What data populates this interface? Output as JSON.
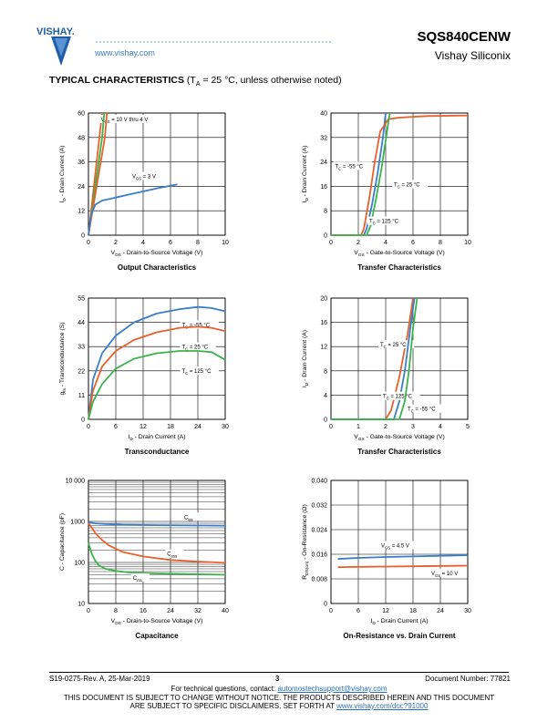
{
  "header": {
    "brand": "VISHAY.",
    "url": "www.vishay.com",
    "part_number": "SQS840CENW",
    "company": "Vishay Siliconix"
  },
  "section": {
    "title": "TYPICAL CHARACTERISTICS",
    "condition": "(T",
    "condition_sub": "A",
    "condition_rest": " = 25 °C, unless otherwise noted)"
  },
  "footer": {
    "doc_rev": "S19-0275-Rev. A, 25-Mar-2019",
    "page": "3",
    "doc_number": "Document Number: 77821",
    "questions_text": "For technical questions, contact: ",
    "questions_link": "automostechsupport@vishay.com",
    "notice_line1": "THIS DOCUMENT IS SUBJECT TO CHANGE WITHOUT NOTICE. THE PRODUCTS DESCRIBED HEREIN AND THIS DOCUMENT",
    "notice_line2": "ARE SUBJECT TO SPECIFIC DISCLAIMERS, SET FORTH AT ",
    "notice_link": "www.vishay.com/doc?91000"
  },
  "colors": {
    "blue": "#3a7dc9",
    "orange": "#e8612c",
    "green": "#3cb34a",
    "grid": "#000000"
  },
  "chart_data": [
    {
      "type": "line",
      "title": "Output Characteristics",
      "xlabel": "V_DS - Drain-to-Source Voltage (V)",
      "ylabel": "I_D - Drain Current (A)",
      "xlim": [
        0,
        10
      ],
      "ylim": [
        0,
        60
      ],
      "xticks": [
        0,
        2,
        4,
        6,
        8,
        10
      ],
      "yticks": [
        0,
        12,
        24,
        36,
        48,
        60
      ],
      "series": [
        {
          "name": "V_GS = 10 V thru 4 V",
          "color": "orange",
          "x": [
            0,
            0.2,
            0.4,
            0.6,
            0.8,
            1.0
          ],
          "y": [
            0,
            12,
            24,
            36,
            48,
            60
          ]
        },
        {
          "name": "",
          "color": "green",
          "x": [
            0,
            0.25,
            0.5,
            0.75,
            1.0,
            1.15
          ],
          "y": [
            0,
            12,
            24,
            36,
            48,
            60
          ]
        },
        {
          "name": "",
          "color": "orange",
          "x": [
            0,
            0.3,
            0.6,
            0.9,
            1.2,
            1.35
          ],
          "y": [
            0,
            12,
            24,
            36,
            48,
            60
          ]
        },
        {
          "name": "V_GS = 3 V",
          "color": "blue",
          "x": [
            0,
            0.2,
            0.5,
            1.0,
            2.0,
            3.0,
            4.0,
            5.0,
            6.5
          ],
          "y": [
            0,
            10,
            15,
            17,
            18.5,
            20,
            21.5,
            23,
            25
          ]
        }
      ]
    },
    {
      "type": "line",
      "title": "Transfer Characteristics",
      "xlabel": "V_GS - Gate-to-Source Voltage (V)",
      "ylabel": "I_D - Drain Current (A)",
      "xlim": [
        0,
        10
      ],
      "ylim": [
        0,
        40
      ],
      "xticks": [
        0,
        2,
        4,
        6,
        8,
        10
      ],
      "yticks": [
        0,
        8,
        16,
        24,
        32,
        40
      ],
      "series": [
        {
          "name": "T_C = -55 °C",
          "color": "blue",
          "x": [
            0,
            2.4,
            2.6,
            3.0,
            3.4,
            3.8,
            4.0
          ],
          "y": [
            0,
            0,
            2,
            10,
            20,
            32,
            40
          ]
        },
        {
          "name": "T_C = 25 °C",
          "color": "orange",
          "x": [
            0,
            2.2,
            2.4,
            2.8,
            3.2,
            3.6,
            4.2,
            5,
            7,
            10
          ],
          "y": [
            0,
            0,
            2,
            12,
            24,
            34,
            38,
            38.5,
            39,
            39.2
          ]
        },
        {
          "name": "T_C = 125 °C",
          "color": "green",
          "x": [
            0,
            2.6,
            2.9,
            3.3,
            3.7,
            4.1,
            4.3
          ],
          "y": [
            0,
            0,
            3,
            12,
            22,
            34,
            40
          ]
        }
      ]
    },
    {
      "type": "line",
      "title": "Transconductance",
      "xlabel": "I_D - Drain Current (A)",
      "ylabel": "g_fs - Transconductance (S)",
      "xlim": [
        0,
        30
      ],
      "ylim": [
        0,
        55
      ],
      "xticks": [
        0,
        6,
        12,
        18,
        24,
        30
      ],
      "yticks": [
        0,
        11,
        22,
        33,
        44,
        55
      ],
      "series": [
        {
          "name": "T_C = -55 °C",
          "color": "blue",
          "x": [
            0,
            1,
            3,
            6,
            10,
            15,
            20,
            24,
            27,
            30
          ],
          "y": [
            0,
            18,
            30,
            38,
            44,
            48,
            50,
            51,
            50.5,
            49
          ]
        },
        {
          "name": "T_C = 25 °C",
          "color": "orange",
          "x": [
            0,
            1,
            3,
            6,
            10,
            15,
            20,
            24,
            27,
            30
          ],
          "y": [
            0,
            13,
            24,
            31,
            36,
            39.5,
            41.5,
            42,
            41.5,
            40
          ]
        },
        {
          "name": "T_C = 125 °C",
          "color": "green",
          "x": [
            0,
            1,
            3,
            6,
            10,
            15,
            20,
            24,
            27,
            30
          ],
          "y": [
            0,
            8,
            16,
            23,
            27.5,
            30,
            31,
            31,
            30.5,
            27
          ]
        }
      ]
    },
    {
      "type": "line",
      "title": "Transfer Characteristics",
      "xlabel": "V_GS - Gate-to-Source Voltage (V)",
      "ylabel": "I_D - Drain Current (A)",
      "xlim": [
        0,
        5
      ],
      "ylim": [
        0,
        20
      ],
      "xticks": [
        0,
        1,
        2,
        3,
        4,
        5
      ],
      "yticks": [
        0,
        4,
        8,
        12,
        16,
        20
      ],
      "series": [
        {
          "name": "T_C = 25 °C",
          "color": "orange",
          "x": [
            0,
            2.0,
            2.2,
            2.5,
            2.8,
            3.0
          ],
          "y": [
            0,
            0,
            1.5,
            7,
            14,
            20
          ]
        },
        {
          "name": "T_C = 125 °C",
          "color": "blue",
          "x": [
            0,
            2.3,
            2.5,
            2.7,
            2.9,
            3.05
          ],
          "y": [
            0,
            0,
            3,
            8,
            15,
            20
          ]
        },
        {
          "name": "T_C = -55 °C",
          "color": "green",
          "x": [
            0,
            2.5,
            2.7,
            2.85,
            3.0,
            3.15
          ],
          "y": [
            0,
            0,
            3,
            8,
            15,
            20
          ]
        }
      ]
    },
    {
      "type": "line",
      "title": "Capacitance",
      "xlabel": "V_DS - Drain-to-Source Voltage (V)",
      "ylabel": "C - Capacitance (pF)",
      "xlim": [
        0,
        40
      ],
      "ylim": [
        10,
        10000
      ],
      "yscale": "log",
      "xticks": [
        0,
        8,
        16,
        24,
        32,
        40
      ],
      "yticks": [
        10,
        100,
        1000,
        10000
      ],
      "ytick_labels": [
        "10",
        "100",
        "1000",
        "10 000"
      ],
      "series": [
        {
          "name": "C_iss",
          "color": "blue",
          "x": [
            0,
            2,
            5,
            10,
            20,
            30,
            40
          ],
          "y": [
            950,
            900,
            860,
            830,
            810,
            800,
            790
          ]
        },
        {
          "name": "C_oss",
          "color": "orange",
          "x": [
            0,
            1,
            2,
            4,
            6,
            10,
            16,
            24,
            32,
            40
          ],
          "y": [
            900,
            700,
            520,
            350,
            260,
            180,
            140,
            115,
            105,
            98
          ]
        },
        {
          "name": "C_rss",
          "color": "green",
          "x": [
            0,
            1,
            2,
            3,
            5,
            8,
            12,
            20,
            30,
            40
          ],
          "y": [
            300,
            160,
            110,
            85,
            70,
            62,
            57,
            54,
            52,
            50
          ]
        }
      ]
    },
    {
      "type": "line",
      "title": "On-Resistance vs. Drain Current",
      "xlabel": "I_D - Drain Current (A)",
      "ylabel": "R_DS(on) - On-Resistance (Ω)",
      "xlim": [
        0,
        30
      ],
      "ylim": [
        0,
        0.04
      ],
      "xticks": [
        0,
        6,
        12,
        18,
        24,
        30
      ],
      "yticks": [
        0,
        0.008,
        0.016,
        0.024,
        0.032,
        0.04
      ],
      "ytick_labels": [
        "0",
        "0.008",
        "0.016",
        "0.024",
        "0.032",
        "0.040"
      ],
      "series": [
        {
          "name": "V_GS = 4.5 V",
          "color": "blue",
          "x": [
            1.5,
            6,
            12,
            18,
            24,
            30
          ],
          "y": [
            0.0145,
            0.0148,
            0.0151,
            0.0153,
            0.0155,
            0.0157
          ]
        },
        {
          "name": "V_GS = 10 V",
          "color": "orange",
          "x": [
            1.5,
            6,
            12,
            18,
            24,
            30
          ],
          "y": [
            0.0118,
            0.0119,
            0.012,
            0.0121,
            0.0122,
            0.0123
          ]
        }
      ]
    }
  ]
}
